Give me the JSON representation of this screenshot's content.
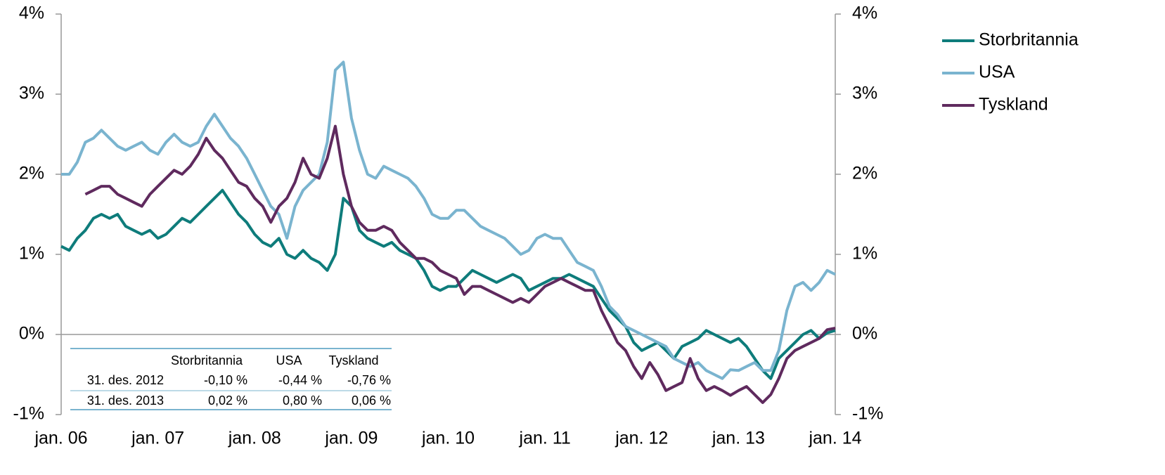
{
  "chart_data": {
    "type": "line",
    "x": [
      "2006-01",
      "2006-02",
      "2006-03",
      "2006-04",
      "2006-05",
      "2006-06",
      "2006-07",
      "2006-08",
      "2006-09",
      "2006-10",
      "2006-11",
      "2006-12",
      "2007-01",
      "2007-02",
      "2007-03",
      "2007-04",
      "2007-05",
      "2007-06",
      "2007-07",
      "2007-08",
      "2007-09",
      "2007-10",
      "2007-11",
      "2007-12",
      "2008-01",
      "2008-02",
      "2008-03",
      "2008-04",
      "2008-05",
      "2008-06",
      "2008-07",
      "2008-08",
      "2008-09",
      "2008-10",
      "2008-11",
      "2008-12",
      "2009-01",
      "2009-02",
      "2009-03",
      "2009-04",
      "2009-05",
      "2009-06",
      "2009-07",
      "2009-08",
      "2009-09",
      "2009-10",
      "2009-11",
      "2009-12",
      "2010-01",
      "2010-02",
      "2010-03",
      "2010-04",
      "2010-05",
      "2010-06",
      "2010-07",
      "2010-08",
      "2010-09",
      "2010-10",
      "2010-11",
      "2010-12",
      "2011-01",
      "2011-02",
      "2011-03",
      "2011-04",
      "2011-05",
      "2011-06",
      "2011-07",
      "2011-08",
      "2011-09",
      "2011-10",
      "2011-11",
      "2011-12",
      "2012-01",
      "2012-02",
      "2012-03",
      "2012-04",
      "2012-05",
      "2012-06",
      "2012-07",
      "2012-08",
      "2012-09",
      "2012-10",
      "2012-11",
      "2012-12",
      "2013-01",
      "2013-02",
      "2013-03",
      "2013-04",
      "2013-05",
      "2013-06",
      "2013-07",
      "2013-08",
      "2013-09",
      "2013-10",
      "2013-11",
      "2013-12",
      "2014-01"
    ],
    "series": [
      {
        "name": "Storbritannia",
        "color": "#0e7c7b",
        "values": [
          1.1,
          1.05,
          1.2,
          1.3,
          1.45,
          1.5,
          1.45,
          1.5,
          1.35,
          1.3,
          1.25,
          1.3,
          1.2,
          1.25,
          1.35,
          1.45,
          1.4,
          1.5,
          1.6,
          1.7,
          1.8,
          1.65,
          1.5,
          1.4,
          1.25,
          1.15,
          1.1,
          1.2,
          1.0,
          0.95,
          1.05,
          0.95,
          0.9,
          0.8,
          1.0,
          1.7,
          1.6,
          1.3,
          1.2,
          1.15,
          1.1,
          1.15,
          1.05,
          1.0,
          0.95,
          0.8,
          0.6,
          0.55,
          0.6,
          0.6,
          0.7,
          0.8,
          0.75,
          0.7,
          0.65,
          0.7,
          0.75,
          0.7,
          0.55,
          0.6,
          0.65,
          0.7,
          0.7,
          0.75,
          0.7,
          0.65,
          0.6,
          0.45,
          0.3,
          0.2,
          0.1,
          -0.1,
          -0.2,
          -0.15,
          -0.1,
          -0.2,
          -0.3,
          -0.15,
          -0.1,
          -0.05,
          0.05,
          0.0,
          -0.05,
          -0.1,
          -0.05,
          -0.15,
          -0.3,
          -0.45,
          -0.55,
          -0.3,
          -0.2,
          -0.1,
          0.0,
          0.05,
          -0.05,
          0.02,
          0.05
        ]
      },
      {
        "name": "USA",
        "color": "#7ab4cf",
        "values": [
          2.0,
          2.0,
          2.15,
          2.4,
          2.45,
          2.55,
          2.45,
          2.35,
          2.3,
          2.35,
          2.4,
          2.3,
          2.25,
          2.4,
          2.5,
          2.4,
          2.35,
          2.4,
          2.6,
          2.75,
          2.6,
          2.45,
          2.35,
          2.2,
          2.0,
          1.8,
          1.6,
          1.5,
          1.2,
          1.6,
          1.8,
          1.9,
          2.0,
          2.4,
          3.3,
          3.4,
          2.7,
          2.3,
          2.0,
          1.95,
          2.1,
          2.05,
          2.0,
          1.95,
          1.85,
          1.7,
          1.5,
          1.45,
          1.45,
          1.55,
          1.55,
          1.45,
          1.35,
          1.3,
          1.25,
          1.2,
          1.1,
          1.0,
          1.05,
          1.2,
          1.25,
          1.2,
          1.2,
          1.05,
          0.9,
          0.85,
          0.8,
          0.6,
          0.35,
          0.25,
          0.1,
          0.05,
          0.0,
          -0.05,
          -0.1,
          -0.15,
          -0.3,
          -0.35,
          -0.4,
          -0.35,
          -0.45,
          -0.5,
          -0.55,
          -0.44,
          -0.45,
          -0.4,
          -0.35,
          -0.45,
          -0.45,
          -0.2,
          0.3,
          0.6,
          0.65,
          0.55,
          0.65,
          0.8,
          0.75
        ]
      },
      {
        "name": "Tyskland",
        "color": "#5f2a5e",
        "values": [
          null,
          null,
          null,
          1.75,
          1.8,
          1.85,
          1.85,
          1.75,
          1.7,
          1.65,
          1.6,
          1.75,
          1.85,
          1.95,
          2.05,
          2.0,
          2.1,
          2.25,
          2.45,
          2.3,
          2.2,
          2.05,
          1.9,
          1.85,
          1.7,
          1.6,
          1.4,
          1.6,
          1.7,
          1.9,
          2.2,
          2.0,
          1.95,
          2.2,
          2.6,
          2.0,
          1.6,
          1.4,
          1.3,
          1.3,
          1.35,
          1.3,
          1.15,
          1.05,
          0.95,
          0.95,
          0.9,
          0.8,
          0.75,
          0.7,
          0.5,
          0.6,
          0.6,
          0.55,
          0.5,
          0.45,
          0.4,
          0.45,
          0.4,
          0.5,
          0.6,
          0.65,
          0.7,
          0.65,
          0.6,
          0.55,
          0.55,
          0.3,
          0.1,
          -0.1,
          -0.2,
          -0.4,
          -0.55,
          -0.35,
          -0.5,
          -0.7,
          -0.65,
          -0.6,
          -0.3,
          -0.55,
          -0.7,
          -0.65,
          -0.7,
          -0.76,
          -0.7,
          -0.65,
          -0.75,
          -0.85,
          -0.75,
          -0.55,
          -0.3,
          -0.2,
          -0.15,
          -0.1,
          -0.05,
          0.06,
          0.08
        ]
      }
    ],
    "xlim": [
      "2006-01",
      "2014-01"
    ],
    "xticks": [
      {
        "value": "2006-01",
        "label": "jan. 06"
      },
      {
        "value": "2007-01",
        "label": "jan. 07"
      },
      {
        "value": "2008-01",
        "label": "jan. 08"
      },
      {
        "value": "2009-01",
        "label": "jan. 09"
      },
      {
        "value": "2010-01",
        "label": "jan. 10"
      },
      {
        "value": "2011-01",
        "label": "jan. 11"
      },
      {
        "value": "2012-01",
        "label": "jan. 12"
      },
      {
        "value": "2013-01",
        "label": "jan. 13"
      },
      {
        "value": "2014-01",
        "label": "jan. 14"
      }
    ],
    "ylim": [
      -1,
      4
    ],
    "yticks": [
      {
        "value": -1,
        "label": "-1%"
      },
      {
        "value": 0,
        "label": "0%"
      },
      {
        "value": 1,
        "label": "1%"
      },
      {
        "value": 2,
        "label": "2%"
      },
      {
        "value": 3,
        "label": "3%"
      },
      {
        "value": 4,
        "label": "4%"
      }
    ],
    "y2lim": [
      -1,
      4
    ],
    "y2ticks": [
      {
        "value": -1,
        "label": "-1%"
      },
      {
        "value": 0,
        "label": "0%"
      },
      {
        "value": 1,
        "label": "1%"
      },
      {
        "value": 2,
        "label": "2%"
      },
      {
        "value": 3,
        "label": "3%"
      },
      {
        "value": 4,
        "label": "4%"
      }
    ],
    "legend": "right",
    "table": {
      "columns": [
        "Storbritannia",
        "USA",
        "Tyskland"
      ],
      "rows": [
        {
          "label": "31. des. 2012",
          "cells": [
            "-0,10 %",
            "-0,44 %",
            "-0,76 %"
          ]
        },
        {
          "label": "31. des. 2013",
          "cells": [
            "0,02 %",
            "0,80 %",
            "0,06 %"
          ]
        }
      ]
    }
  }
}
